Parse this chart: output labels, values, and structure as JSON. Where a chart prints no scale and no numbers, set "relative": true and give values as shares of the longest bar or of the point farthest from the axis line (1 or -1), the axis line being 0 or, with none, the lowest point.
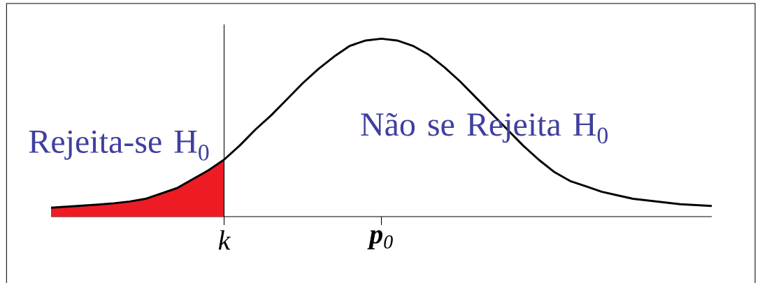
{
  "chart_data": {
    "type": "line",
    "relative": true,
    "categories": [
      null,
      null,
      null,
      null,
      null,
      null,
      null,
      null,
      null,
      null,
      null,
      "*k*",
      null,
      null,
      null,
      null,
      null,
      null,
      null,
      null,
      null,
      "**p**$_{0}$",
      null,
      null,
      null,
      null,
      null,
      null,
      null,
      null,
      null,
      null,
      null,
      null,
      null,
      null,
      null,
      null,
      null,
      null,
      null,
      null,
      null
    ],
    "series": [
      {
        "type": "area",
        "color": "#ed1c24",
        "values": [
          0.05,
          0.056,
          0.062,
          0.068,
          0.075,
          0.085,
          0.1,
          0.13,
          0.16,
          0.21,
          0.26,
          0.32,
          null,
          null,
          null,
          null,
          null,
          null,
          null,
          null,
          null,
          null,
          null,
          null,
          null,
          null,
          null,
          null,
          null,
          null,
          null,
          null,
          null,
          null,
          null,
          null,
          null,
          null,
          null,
          null,
          null,
          null,
          null
        ]
      },
      {
        "color": "#000000",
        "values": [
          0.05,
          0.056,
          0.062,
          0.068,
          0.075,
          0.085,
          0.1,
          0.13,
          0.16,
          0.21,
          0.26,
          0.32,
          0.4,
          0.49,
          0.57,
          0.66,
          0.75,
          0.83,
          0.9,
          0.96,
          0.99,
          1.0,
          0.99,
          0.96,
          0.91,
          0.84,
          0.76,
          0.67,
          0.58,
          0.49,
          0.4,
          0.32,
          0.25,
          0.2,
          0.17,
          0.14,
          0.12,
          0.1,
          0.09,
          0.08,
          0.07,
          0.065,
          0.06
        ]
      }
    ],
    "ref_lines": [
      {
        "axis": "x",
        "value": "*k*",
        "color": "#000000"
      }
    ],
    "annotations": [
      "Rejeita-se H$_{0}$",
      "Não se Rejeita H$_{0}$"
    ]
  }
}
